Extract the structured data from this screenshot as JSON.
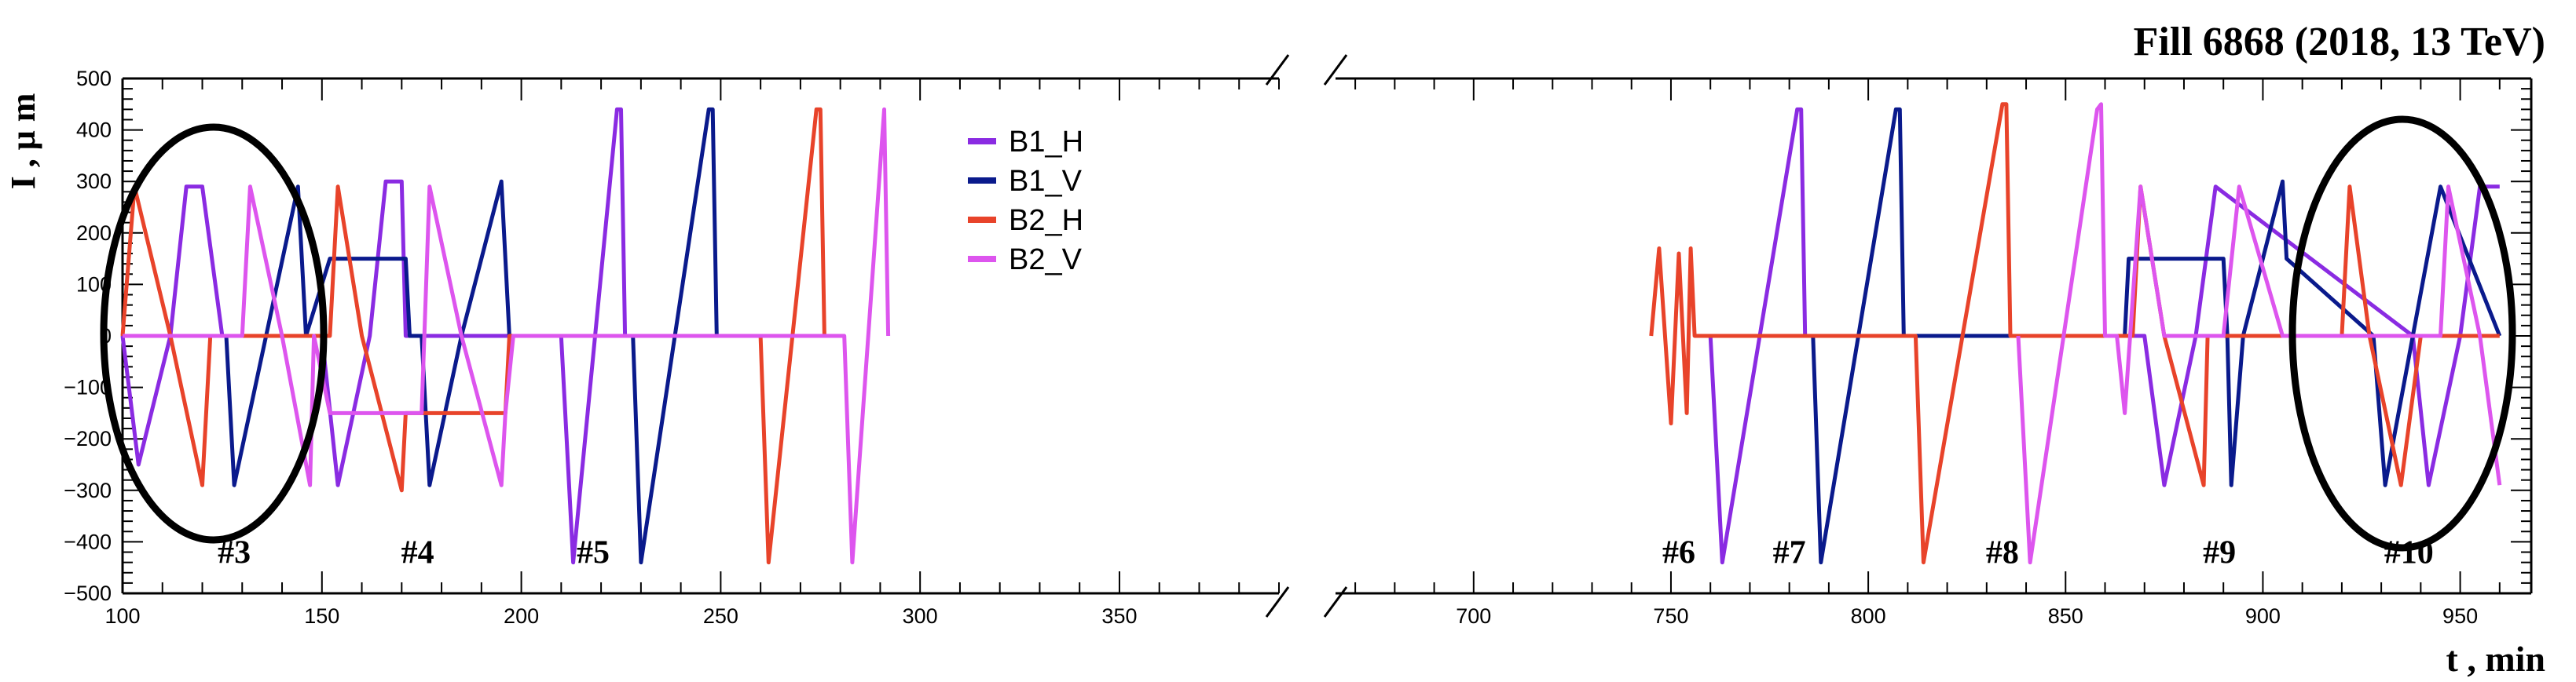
{
  "chart_data": {
    "type": "line",
    "title": "Fill 6868 (2018, 13 TeV)",
    "xlabel": "t , min",
    "ylabel": "I ,  μ m",
    "ylim": [
      -500,
      500
    ],
    "yticks": [
      "500",
      "400",
      "300",
      "200",
      "100",
      "0",
      "−100",
      "−200",
      "−300",
      "−400",
      "−500"
    ],
    "yticks_values": [
      500,
      400,
      300,
      200,
      100,
      0,
      -100,
      -200,
      -300,
      -400,
      -500
    ],
    "panels": [
      {
        "xlim": [
          100,
          390
        ],
        "xticks": [
          "100",
          "150",
          "200",
          "250",
          "300",
          "350"
        ],
        "xtick_values": [
          100,
          150,
          200,
          250,
          300,
          350
        ]
      },
      {
        "xlim": [
          665,
          968
        ],
        "xticks": [
          "700",
          "750",
          "800",
          "850",
          "900",
          "950"
        ],
        "xtick_values": [
          700,
          750,
          800,
          850,
          900,
          950
        ]
      }
    ],
    "legend": {
      "placement": "top-center",
      "entries": [
        "B1_H",
        "B1_V",
        "B2_H",
        "B2_V"
      ]
    },
    "colors": {
      "B1_H": "#8a2be2",
      "B1_V": "#0a1a8c",
      "B2_H": "#e8432a",
      "B2_V": "#dd55ee"
    },
    "series": [
      {
        "name": "B1_H",
        "x": [
          100,
          104,
          112,
          116,
          120,
          125,
          150,
          154,
          162,
          166,
          170,
          171,
          210,
          213,
          224,
          225,
          226,
          660,
          760,
          763,
          782,
          783,
          784,
          870,
          875,
          883,
          888,
          938,
          942,
          950,
          955,
          960
        ],
        "y": [
          0,
          -250,
          0,
          290,
          290,
          0,
          0,
          -290,
          0,
          300,
          300,
          0,
          0,
          -440,
          440,
          440,
          0,
          0,
          0,
          -440,
          440,
          440,
          0,
          0,
          -290,
          0,
          290,
          0,
          -290,
          0,
          290,
          290
        ]
      },
      {
        "name": "B1_V",
        "x": [
          100,
          126,
          128,
          136,
          144,
          146,
          152,
          171,
          172,
          175,
          177,
          185,
          195,
          196,
          197,
          228,
          230,
          247,
          248,
          249,
          660,
          786,
          788,
          807,
          808,
          809,
          865,
          866,
          890,
          891,
          892,
          895,
          905,
          906,
          928,
          931,
          945,
          960
        ],
        "y": [
          0,
          0,
          -290,
          0,
          290,
          0,
          150,
          150,
          0,
          0,
          -290,
          0,
          300,
          150,
          0,
          0,
          -440,
          440,
          440,
          0,
          0,
          0,
          -440,
          440,
          440,
          0,
          0,
          150,
          150,
          0,
          -290,
          0,
          300,
          150,
          0,
          -290,
          290,
          0
        ]
      },
      {
        "name": "B2_H",
        "x": [
          100,
          103,
          112,
          120,
          122,
          152,
          154,
          160,
          170,
          171,
          172,
          180,
          196,
          197,
          260,
          262,
          274,
          275,
          276,
          660,
          745,
          747,
          750,
          752,
          754,
          755,
          756,
          812,
          814,
          834,
          835,
          836,
          867,
          869,
          875,
          885,
          886,
          920,
          922,
          927,
          935,
          940,
          960
        ],
        "y": [
          0,
          290,
          0,
          -290,
          0,
          0,
          290,
          0,
          -300,
          -150,
          -150,
          -150,
          -150,
          0,
          0,
          -440,
          440,
          440,
          0,
          0,
          0,
          170,
          -170,
          160,
          -150,
          170,
          0,
          0,
          -440,
          450,
          450,
          0,
          0,
          290,
          0,
          -290,
          0,
          0,
          290,
          0,
          -290,
          0,
          0
        ]
      },
      {
        "name": "B2_V",
        "x": [
          100,
          130,
          132,
          140,
          147,
          148,
          152,
          175,
          177,
          185,
          195,
          196,
          198,
          281,
          283,
          291,
          292,
          660,
          838,
          841,
          858,
          859,
          860,
          863,
          865,
          869,
          875,
          890,
          894,
          905,
          945,
          947,
          955,
          960
        ],
        "y": [
          0,
          0,
          290,
          0,
          -290,
          0,
          -150,
          -150,
          290,
          0,
          -290,
          -150,
          0,
          0,
          -440,
          440,
          0,
          0,
          0,
          -440,
          440,
          450,
          0,
          0,
          -150,
          290,
          0,
          0,
          290,
          0,
          0,
          290,
          0,
          -290
        ]
      }
    ],
    "annotations": [
      {
        "text": "#3",
        "x": 128,
        "y": -420
      },
      {
        "text": "#4",
        "x": 174,
        "y": -420
      },
      {
        "text": "#5",
        "x": 218,
        "y": -420
      },
      {
        "text": "#6",
        "x": 752,
        "y": -420
      },
      {
        "text": "#7",
        "x": 780,
        "y": -420
      },
      {
        "text": "#8",
        "x": 834,
        "y": -420
      },
      {
        "text": "#9",
        "x": 889,
        "y": -420
      },
      {
        "text": "#10",
        "x": 937,
        "y": -420
      }
    ],
    "grid": false
  }
}
